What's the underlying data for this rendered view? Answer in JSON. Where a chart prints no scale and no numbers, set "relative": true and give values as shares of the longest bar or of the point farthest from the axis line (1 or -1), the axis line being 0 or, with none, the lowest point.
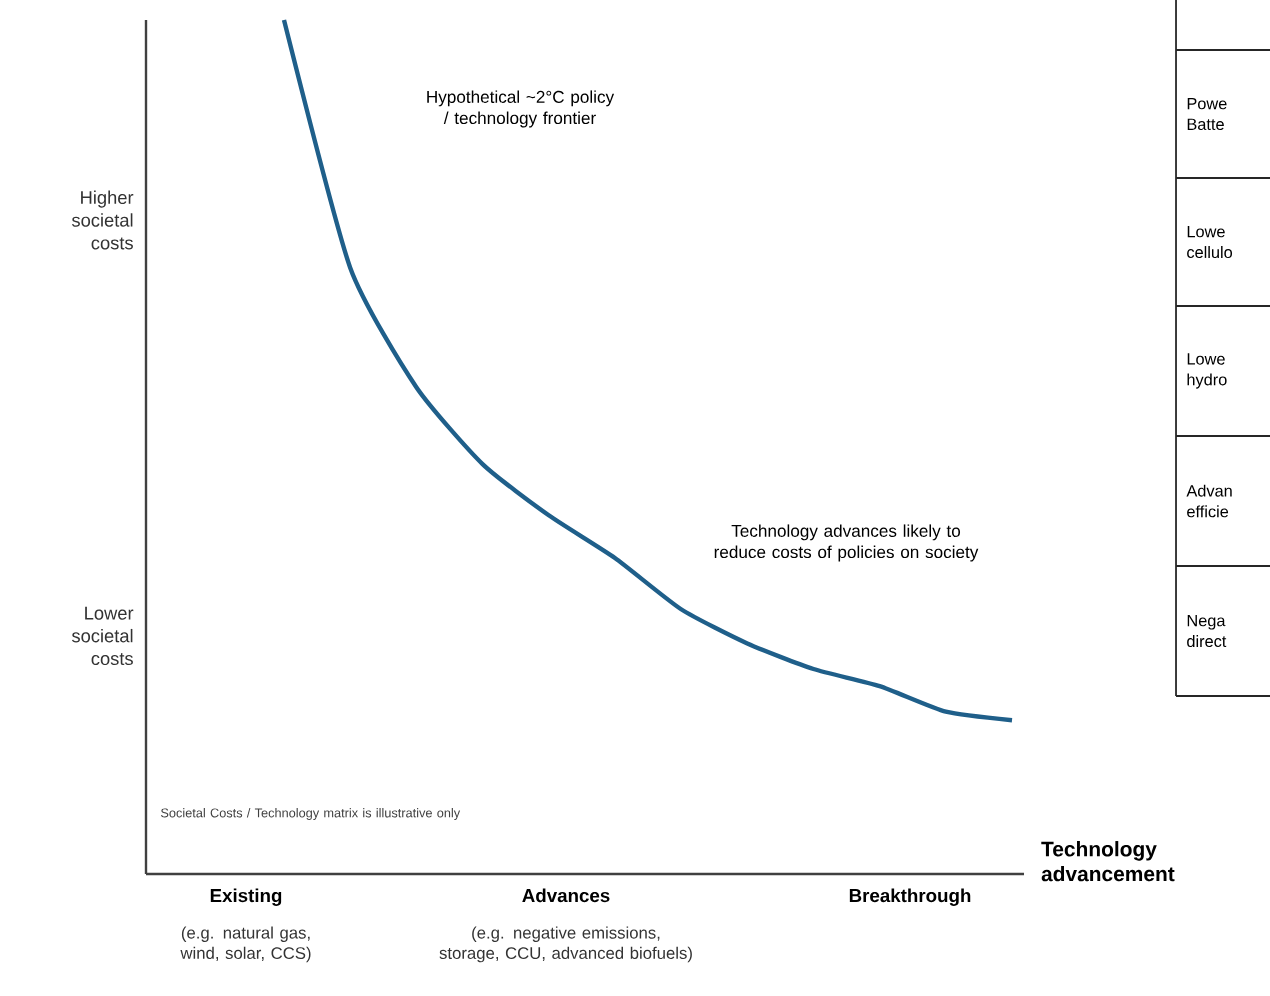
{
  "chart_data": [
    {
      "type": "line",
      "relative": true,
      "xlabel": "Technology advancement",
      "categories": [
        null,
        null,
        null,
        null,
        null,
        null,
        null,
        null,
        null,
        null,
        null,
        null
      ],
      "series": [
        {
          "color": "#1f5f8a",
          "values": [
            1.0,
            0.71,
            0.57,
            0.48,
            0.42,
            0.37,
            0.31,
            0.27,
            0.24,
            0.22,
            0.19,
            0.18
          ]
        }
      ],
      "marker": "none",
      "line_style": "solid",
      "annotations": [
        "Hypothetical ~2°C policy / technology frontier",
        "Technology advances likely to reduce costs of policies on society",
        "Societal Costs / Technology matrix is illustrative only",
        "Higher societal costs",
        "Lower societal costs",
        "Existing",
        "(e.g. natural gas, wind, solar, CCS)",
        "Advances",
        "(e.g. negative emissions, storage, CCU, advanced biofuels)",
        "Breakthrough"
      ]
    },
    {
      "type": "other",
      "annotations": [
        "Powe Batte",
        "Lowe cellulo",
        "Lowe hydro",
        "Advan efficie",
        "Nega direct"
      ]
    }
  ]
}
